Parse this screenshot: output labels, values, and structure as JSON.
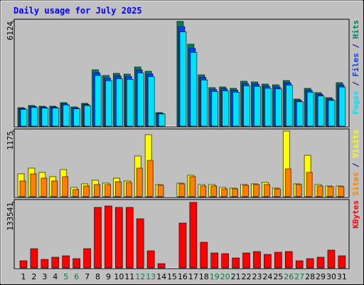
{
  "chart_data": [
    {
      "type": "bar",
      "title": "Daily usage for July 2025",
      "ylim": [
        0,
        6124
      ],
      "yticks": [
        6124
      ],
      "legend_separator": " / ",
      "series": [
        {
          "name": "Hits",
          "color": "#00805c",
          "values": [
            1083,
            1208,
            1166,
            1166,
            1375,
            1125,
            1333,
            3291,
            2958,
            3083,
            3041,
            3458,
            3208,
            791,
            0,
            6124,
            4791,
            3000,
            2250,
            2291,
            2208,
            2625,
            2583,
            2458,
            2416,
            2666,
            1583,
            2208,
            1958,
            1666,
            2541
          ]
        },
        {
          "name": "Files",
          "color": "#0040ff",
          "values": [
            1030,
            1150,
            1110,
            1110,
            1300,
            1070,
            1265,
            3125,
            2810,
            2930,
            2890,
            3285,
            3050,
            750,
            0,
            5820,
            4550,
            2850,
            2140,
            2180,
            2100,
            2495,
            2455,
            2335,
            2295,
            2535,
            1505,
            2100,
            1860,
            1585,
            2415
          ]
        },
        {
          "name": "Pages",
          "color": "#00e0ff",
          "values": [
            975,
            1085,
            1050,
            1050,
            1240,
            1010,
            1200,
            2960,
            2660,
            2775,
            2735,
            3110,
            2890,
            710,
            0,
            5510,
            4310,
            2700,
            2025,
            2060,
            1985,
            2360,
            2325,
            2210,
            2175,
            2400,
            1425,
            1985,
            1760,
            1500,
            2285
          ]
        }
      ]
    },
    {
      "type": "bar",
      "ylim": [
        0,
        1175
      ],
      "yticks": [
        1175
      ],
      "legend_separator": " / ",
      "series": [
        {
          "name": "Visits",
          "color": "#ffff00",
          "values": [
            409,
            511,
            434,
            358,
            485,
            166,
            230,
            294,
            243,
            332,
            281,
            728,
            1111,
            217,
            0,
            243,
            383,
            217,
            217,
            166,
            153,
            217,
            230,
            255,
            153,
            1175,
            230,
            741,
            217,
            192,
            192
          ]
        },
        {
          "name": "Sites",
          "color": "#ff8000",
          "values": [
            281,
            409,
            332,
            281,
            358,
            128,
            192,
            217,
            217,
            268,
            255,
            511,
            651,
            204,
            0,
            230,
            358,
            192,
            192,
            140,
            140,
            204,
            217,
            217,
            140,
            498,
            217,
            434,
            192,
            179,
            179
          ]
        }
      ]
    },
    {
      "type": "bar",
      "ylim": [
        0,
        133541
      ],
      "yticks": [
        133541
      ],
      "categories": [
        "1",
        "2",
        "3",
        "4",
        "5",
        "6",
        "7",
        "8",
        "9",
        "10",
        "11",
        "12",
        "13",
        "14",
        "15",
        "16",
        "17",
        "18",
        "19",
        "20",
        "21",
        "22",
        "23",
        "24",
        "25",
        "26",
        "27",
        "28",
        "29",
        "30",
        "31"
      ],
      "category_colors": [
        "#000000",
        "#000000",
        "#000000",
        "#000000",
        "#008040",
        "#008040",
        "#000000",
        "#000000",
        "#000000",
        "#000000",
        "#000000",
        "#008040",
        "#008040",
        "#000000",
        "#000000",
        "#000000",
        "#000000",
        "#000000",
        "#008040",
        "#008040",
        "#000000",
        "#000000",
        "#000000",
        "#000000",
        "#000000",
        "#008040",
        "#008040",
        "#000000",
        "#000000",
        "#000000",
        "#000000"
      ],
      "series": [
        {
          "name": "KBytes",
          "color": "#ff0000",
          "values": [
            14510,
            39180,
            17410,
            21770,
            24670,
            18860,
            39180,
            123340,
            126240,
            123340,
            123340,
            100120,
            34820,
            8710,
            0,
            91410,
            133541,
            52240,
            30470,
            29020,
            20310,
            30470,
            33370,
            27570,
            31920,
            33370,
            14510,
            18860,
            21770,
            36280,
            24670
          ]
        }
      ]
    }
  ]
}
